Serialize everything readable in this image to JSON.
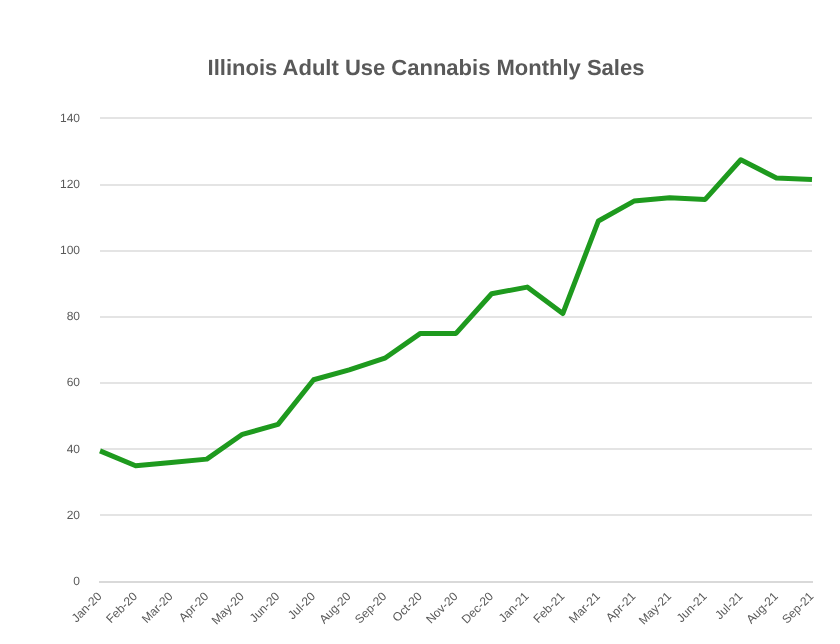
{
  "chart_data": {
    "type": "line",
    "title": "Illinois Adult Use Cannabis Monthly Sales",
    "categories": [
      "Jan-20",
      "Feb-20",
      "Mar-20",
      "Apr-20",
      "May-20",
      "Jun-20",
      "Jul-20",
      "Aug-20",
      "Sep-20",
      "Oct-20",
      "Nov-20",
      "Dec-20",
      "Jan-21",
      "Feb-21",
      "Mar-21",
      "Apr-21",
      "May-21",
      "Jun-21",
      "Jul-21",
      "Aug-21",
      "Sep-21"
    ],
    "series": [
      {
        "color": "#1e9a1e",
        "values": [
          39.5,
          35,
          36,
          37,
          44.5,
          47.5,
          61,
          64,
          67.5,
          75,
          75,
          87,
          89,
          81,
          109,
          115,
          116,
          115.5,
          127.5,
          122,
          121.5
        ]
      }
    ],
    "ylim": [
      0,
      140
    ],
    "yticks": [
      0,
      20,
      40,
      60,
      80,
      100,
      120,
      140
    ],
    "grid": "y",
    "legend": false,
    "marker": "none",
    "line_style": "solid"
  }
}
